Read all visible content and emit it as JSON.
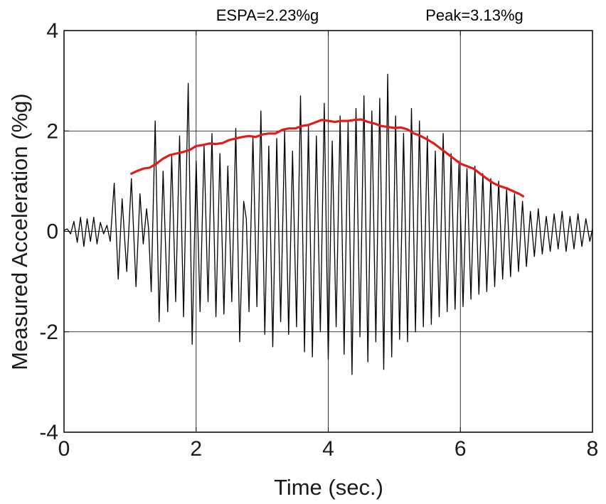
{
  "chart_data": {
    "type": "line",
    "xlabel": "Time (sec.)",
    "ylabel": "Measured Acceleration (%g)",
    "xlim": [
      0,
      8
    ],
    "ylim": [
      -4,
      4
    ],
    "x_ticks": [
      "0",
      "2",
      "4",
      "6",
      "8"
    ],
    "y_ticks": [
      "4",
      "2",
      "0",
      "-2",
      "-4"
    ],
    "x_tick_values": [
      0,
      2,
      4,
      6,
      8
    ],
    "y_tick_values": [
      4,
      2,
      0,
      -2,
      -4
    ],
    "grid": true,
    "annotations": [
      "ESPA=2.23%g",
      "Peak=3.13%g"
    ],
    "colors": {
      "signal": "#000000",
      "espa": "#e41a1c",
      "grid": "#000000"
    },
    "series": [
      {
        "name": "",
        "style": "signal",
        "points": [
          [
            0.0,
            0.02
          ],
          [
            0.05,
            0.05
          ],
          [
            0.1,
            -0.05
          ],
          [
            0.15,
            0.2
          ],
          [
            0.2,
            -0.22
          ],
          [
            0.25,
            0.28
          ],
          [
            0.3,
            -0.3
          ],
          [
            0.35,
            0.25
          ],
          [
            0.4,
            -0.2
          ],
          [
            0.45,
            0.28
          ],
          [
            0.5,
            -0.25
          ],
          [
            0.55,
            0.18
          ],
          [
            0.6,
            -0.05
          ],
          [
            0.65,
            0.12
          ],
          [
            0.7,
            -0.2
          ],
          [
            0.76,
            0.96
          ],
          [
            0.82,
            -0.95
          ],
          [
            0.88,
            0.65
          ],
          [
            0.95,
            -0.8
          ],
          [
            1.02,
            1.05
          ],
          [
            1.09,
            -1.1
          ],
          [
            1.15,
            0.75
          ],
          [
            1.2,
            -0.25
          ],
          [
            1.25,
            0.45
          ],
          [
            1.28,
            0.05
          ],
          [
            1.32,
            -1.2
          ],
          [
            1.38,
            2.2
          ],
          [
            1.44,
            -1.8
          ],
          [
            1.5,
            1.2
          ],
          [
            1.57,
            -1.6
          ],
          [
            1.63,
            1.5
          ],
          [
            1.69,
            -1.4
          ],
          [
            1.75,
            1.9
          ],
          [
            1.81,
            -1.7
          ],
          [
            1.88,
            2.95
          ],
          [
            1.94,
            -2.25
          ],
          [
            2.0,
            1.4
          ],
          [
            2.06,
            -1.6
          ],
          [
            2.12,
            1.7
          ],
          [
            2.18,
            -1.4
          ],
          [
            2.24,
            1.95
          ],
          [
            2.3,
            -1.7
          ],
          [
            2.36,
            1.55
          ],
          [
            2.42,
            -1.65
          ],
          [
            2.48,
            1.3
          ],
          [
            2.54,
            -1.4
          ],
          [
            2.6,
            2.05
          ],
          [
            2.66,
            -2.2
          ],
          [
            2.72,
            0.6
          ],
          [
            2.76,
            0.25
          ],
          [
            2.8,
            -1.6
          ],
          [
            2.86,
            1.9
          ],
          [
            2.92,
            -1.5
          ],
          [
            2.98,
            2.4
          ],
          [
            3.04,
            -2.05
          ],
          [
            3.1,
            1.7
          ],
          [
            3.16,
            -2.3
          ],
          [
            3.22,
            1.85
          ],
          [
            3.28,
            -1.8
          ],
          [
            3.34,
            2.0
          ],
          [
            3.4,
            -2.05
          ],
          [
            3.46,
            1.6
          ],
          [
            3.52,
            -1.9
          ],
          [
            3.58,
            2.7
          ],
          [
            3.64,
            -2.4
          ],
          [
            3.7,
            2.1
          ],
          [
            3.76,
            -2.5
          ],
          [
            3.82,
            1.9
          ],
          [
            3.88,
            -2.0
          ],
          [
            3.94,
            2.55
          ],
          [
            4.0,
            -2.55
          ],
          [
            4.06,
            1.8
          ],
          [
            4.12,
            -1.9
          ],
          [
            4.18,
            2.3
          ],
          [
            4.24,
            -2.45
          ],
          [
            4.3,
            2.2
          ],
          [
            4.36,
            -2.85
          ],
          [
            4.42,
            2.45
          ],
          [
            4.48,
            -2.1
          ],
          [
            4.54,
            2.7
          ],
          [
            4.6,
            -2.6
          ],
          [
            4.66,
            2.4
          ],
          [
            4.72,
            -2.2
          ],
          [
            4.78,
            2.65
          ],
          [
            4.84,
            -2.75
          ],
          [
            4.9,
            3.13
          ],
          [
            4.96,
            -2.5
          ],
          [
            5.02,
            2.3
          ],
          [
            5.08,
            -2.15
          ],
          [
            5.14,
            1.95
          ],
          [
            5.2,
            -2.2
          ],
          [
            5.26,
            2.45
          ],
          [
            5.32,
            -2.0
          ],
          [
            5.38,
            2.2
          ],
          [
            5.44,
            -1.9
          ],
          [
            5.5,
            1.9
          ],
          [
            5.56,
            -1.85
          ],
          [
            5.62,
            1.6
          ],
          [
            5.68,
            -1.7
          ],
          [
            5.74,
            1.95
          ],
          [
            5.8,
            -1.6
          ],
          [
            5.86,
            1.55
          ],
          [
            5.92,
            -1.55
          ],
          [
            5.98,
            1.4
          ],
          [
            6.04,
            -1.5
          ],
          [
            6.1,
            1.25
          ],
          [
            6.16,
            -1.35
          ],
          [
            6.22,
            1.3
          ],
          [
            6.28,
            -1.25
          ],
          [
            6.34,
            1.15
          ],
          [
            6.4,
            -1.2
          ],
          [
            6.46,
            1.05
          ],
          [
            6.52,
            -1.1
          ],
          [
            6.58,
            1.0
          ],
          [
            6.64,
            -0.95
          ],
          [
            6.7,
            0.85
          ],
          [
            6.76,
            -0.9
          ],
          [
            6.82,
            0.75
          ],
          [
            6.88,
            -0.8
          ],
          [
            6.94,
            0.6
          ],
          [
            7.0,
            -0.7
          ],
          [
            7.06,
            0.4
          ],
          [
            7.12,
            -0.5
          ],
          [
            7.18,
            0.45
          ],
          [
            7.24,
            -0.45
          ],
          [
            7.3,
            0.3
          ],
          [
            7.36,
            -0.4
          ],
          [
            7.42,
            0.35
          ],
          [
            7.48,
            -0.35
          ],
          [
            7.54,
            0.4
          ],
          [
            7.6,
            -0.4
          ],
          [
            7.66,
            0.3
          ],
          [
            7.72,
            -0.35
          ],
          [
            7.78,
            0.35
          ],
          [
            7.84,
            -0.3
          ],
          [
            7.9,
            0.25
          ],
          [
            7.96,
            -0.2
          ],
          [
            8.0,
            0.05
          ]
        ]
      },
      {
        "name": "",
        "style": "espa",
        "points": [
          [
            1.02,
            1.15
          ],
          [
            1.1,
            1.2
          ],
          [
            1.2,
            1.25
          ],
          [
            1.3,
            1.27
          ],
          [
            1.4,
            1.35
          ],
          [
            1.5,
            1.45
          ],
          [
            1.6,
            1.52
          ],
          [
            1.7,
            1.55
          ],
          [
            1.8,
            1.58
          ],
          [
            1.9,
            1.62
          ],
          [
            2.0,
            1.7
          ],
          [
            2.1,
            1.72
          ],
          [
            2.2,
            1.75
          ],
          [
            2.3,
            1.74
          ],
          [
            2.4,
            1.76
          ],
          [
            2.5,
            1.82
          ],
          [
            2.6,
            1.85
          ],
          [
            2.7,
            1.88
          ],
          [
            2.8,
            1.9
          ],
          [
            2.9,
            1.88
          ],
          [
            3.0,
            1.93
          ],
          [
            3.1,
            1.95
          ],
          [
            3.2,
            1.95
          ],
          [
            3.3,
            2.02
          ],
          [
            3.4,
            2.05
          ],
          [
            3.5,
            2.05
          ],
          [
            3.6,
            2.1
          ],
          [
            3.7,
            2.12
          ],
          [
            3.8,
            2.17
          ],
          [
            3.9,
            2.22
          ],
          [
            4.0,
            2.2
          ],
          [
            4.1,
            2.18
          ],
          [
            4.2,
            2.2
          ],
          [
            4.3,
            2.2
          ],
          [
            4.4,
            2.22
          ],
          [
            4.5,
            2.23
          ],
          [
            4.6,
            2.18
          ],
          [
            4.7,
            2.15
          ],
          [
            4.8,
            2.1
          ],
          [
            4.9,
            2.08
          ],
          [
            5.0,
            2.06
          ],
          [
            5.1,
            2.07
          ],
          [
            5.2,
            2.03
          ],
          [
            5.3,
            1.95
          ],
          [
            5.4,
            1.9
          ],
          [
            5.5,
            1.83
          ],
          [
            5.6,
            1.75
          ],
          [
            5.7,
            1.65
          ],
          [
            5.8,
            1.55
          ],
          [
            5.9,
            1.45
          ],
          [
            6.0,
            1.35
          ],
          [
            6.1,
            1.3
          ],
          [
            6.2,
            1.25
          ],
          [
            6.3,
            1.15
          ],
          [
            6.4,
            1.05
          ],
          [
            6.5,
            0.96
          ],
          [
            6.6,
            0.9
          ],
          [
            6.7,
            0.86
          ],
          [
            6.8,
            0.8
          ],
          [
            6.9,
            0.74
          ],
          [
            6.95,
            0.7
          ]
        ]
      }
    ]
  }
}
